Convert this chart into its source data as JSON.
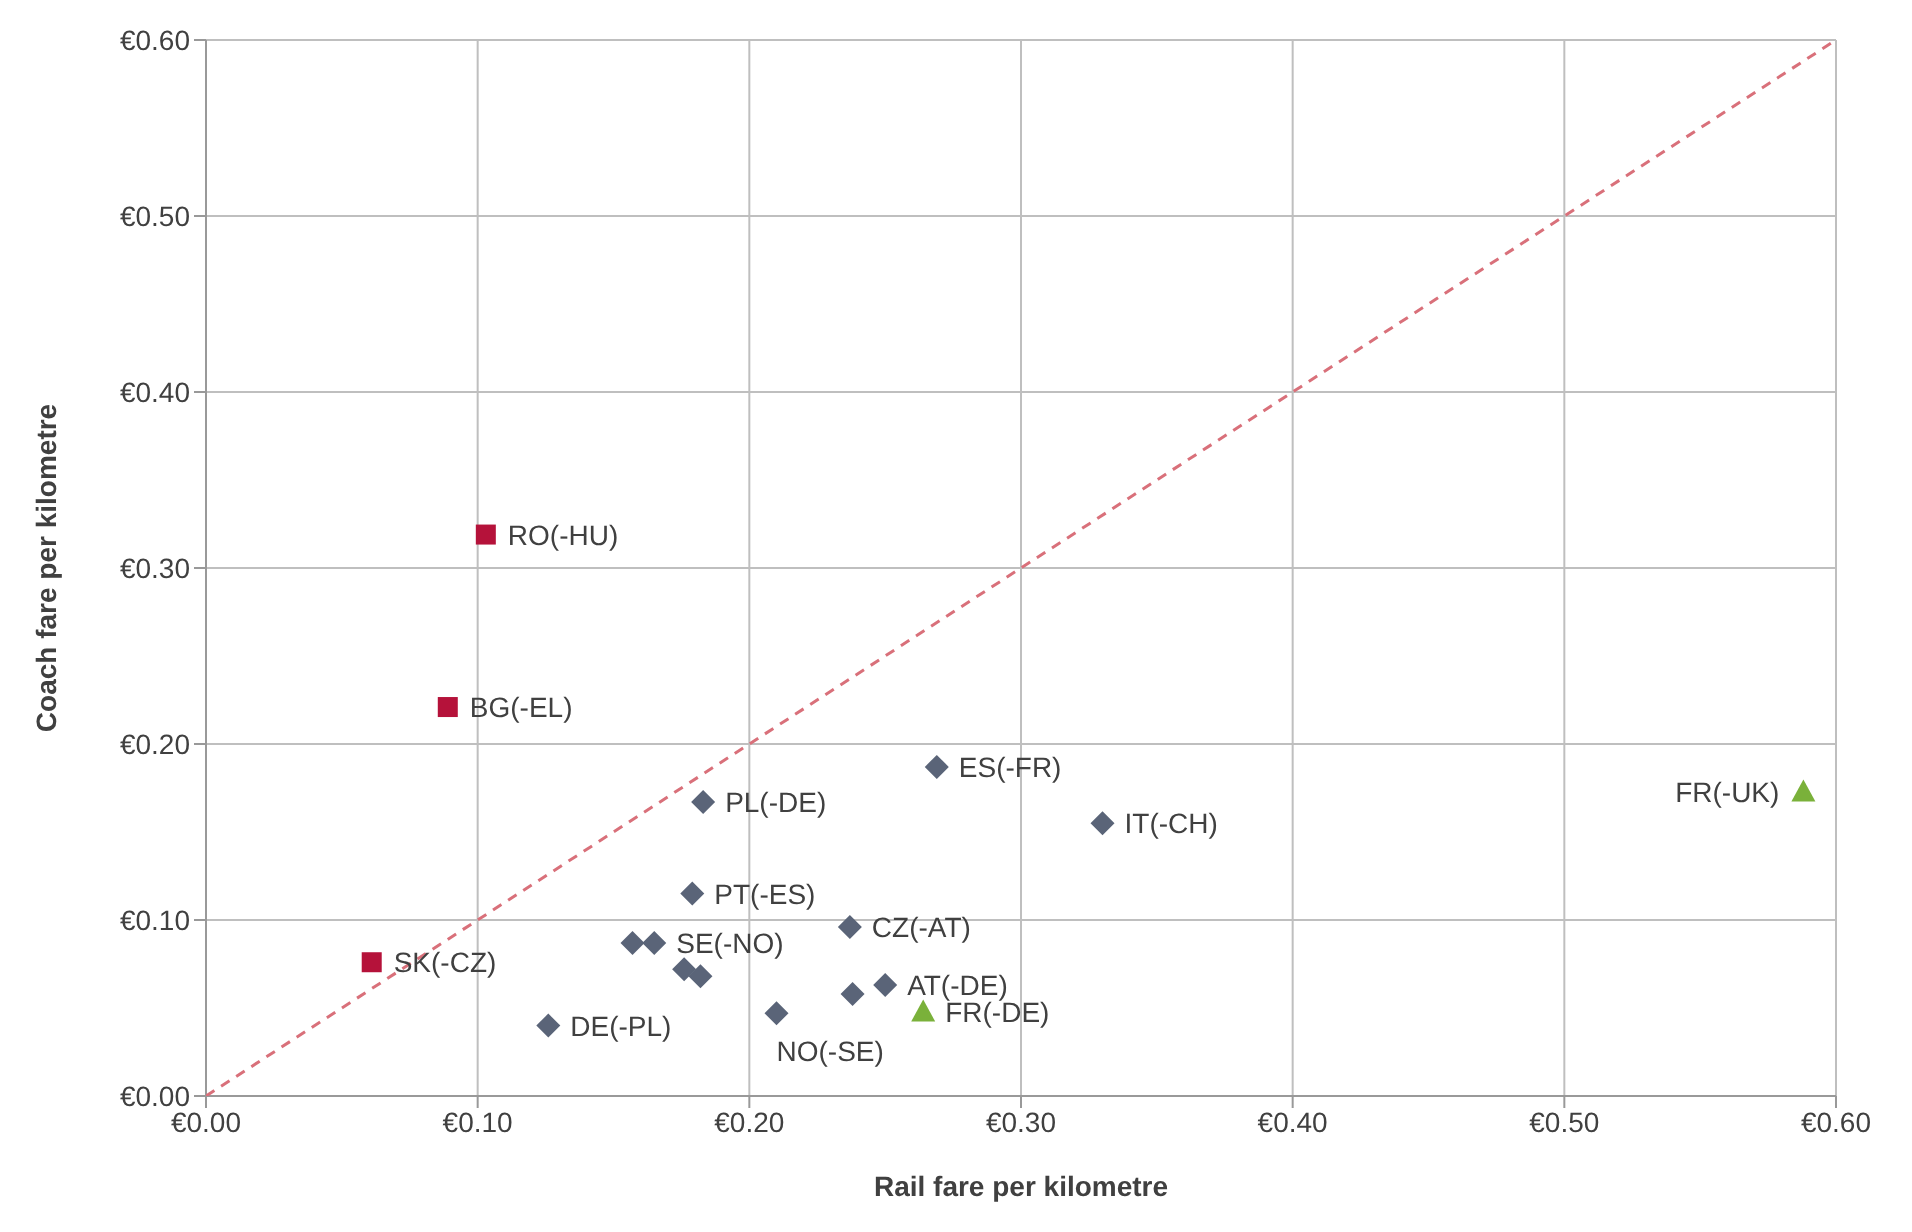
{
  "chart_data": {
    "type": "scatter",
    "xlabel": "Rail fare per kilometre",
    "ylabel": "Coach fare per kilometre",
    "xlim": [
      0,
      0.6
    ],
    "ylim": [
      0,
      0.6
    ],
    "xticks": [
      {
        "value": 0,
        "label": "€0.00"
      },
      {
        "value": 0.1,
        "label": "€0.10"
      },
      {
        "value": 0.2,
        "label": "€0.20"
      },
      {
        "value": 0.3,
        "label": "€0.30"
      },
      {
        "value": 0.4,
        "label": "€0.40"
      },
      {
        "value": 0.5,
        "label": "€0.50"
      },
      {
        "value": 0.6,
        "label": "€0.60"
      }
    ],
    "yticks": [
      {
        "value": 0,
        "label": "€0.00"
      },
      {
        "value": 0.1,
        "label": "€0.10"
      },
      {
        "value": 0.2,
        "label": "€0.20"
      },
      {
        "value": 0.3,
        "label": "€0.30"
      },
      {
        "value": 0.4,
        "label": "€0.40"
      },
      {
        "value": 0.5,
        "label": "€0.50"
      },
      {
        "value": 0.6,
        "label": "€0.60"
      }
    ],
    "grid": true,
    "legend": false,
    "series": [
      {
        "type": "line",
        "color": "#d9707a",
        "line_style": "dashed",
        "marker": "none",
        "x": [
          0,
          0.6
        ],
        "values": [
          0,
          0.6
        ]
      },
      {
        "color": "#b5123a",
        "marker": "square",
        "x": [
          0.103,
          0.089,
          0.061
        ],
        "values": [
          0.319,
          0.221,
          0.076
        ]
      },
      {
        "color": "#5a6478",
        "marker": "diamond",
        "x": [
          0.183,
          0.269,
          0.33,
          0.179,
          0.237,
          0.157,
          0.165,
          0.176,
          0.182,
          0.126,
          0.21,
          0.238,
          0.25
        ],
        "values": [
          0.167,
          0.187,
          0.155,
          0.115,
          0.096,
          0.087,
          0.087,
          0.072,
          0.068,
          0.04,
          0.047,
          0.058,
          0.063
        ]
      },
      {
        "color": "#7ab13a",
        "marker": "triangle",
        "x": [
          0.264,
          0.588
        ],
        "values": [
          0.048,
          0.173
        ]
      }
    ],
    "annotations": [
      {
        "text": "RO(-HU)",
        "x": 0.103,
        "y": 0.319
      },
      {
        "text": "BG(-EL)",
        "x": 0.089,
        "y": 0.221
      },
      {
        "text": "SK(-CZ)",
        "x": 0.061,
        "y": 0.076
      },
      {
        "text": "PL(-DE)",
        "x": 0.183,
        "y": 0.167
      },
      {
        "text": "ES(-FR)",
        "x": 0.269,
        "y": 0.187
      },
      {
        "text": "IT(-CH)",
        "x": 0.33,
        "y": 0.155
      },
      {
        "text": "PT(-ES)",
        "x": 0.179,
        "y": 0.115
      },
      {
        "text": "CZ(-AT)",
        "x": 0.237,
        "y": 0.096
      },
      {
        "text": "SE(-NO)",
        "x": 0.165,
        "y": 0.087
      },
      {
        "text": "DE(-PL)",
        "x": 0.126,
        "y": 0.04
      },
      {
        "text": "NO(-SE)",
        "x": 0.21,
        "y": 0.047
      },
      {
        "text": "AT(-DE)",
        "x": 0.25,
        "y": 0.063
      },
      {
        "text": "FR(-DE)",
        "x": 0.264,
        "y": 0.048
      },
      {
        "text": "FR(-UK)",
        "x": 0.588,
        "y": 0.173
      }
    ]
  }
}
